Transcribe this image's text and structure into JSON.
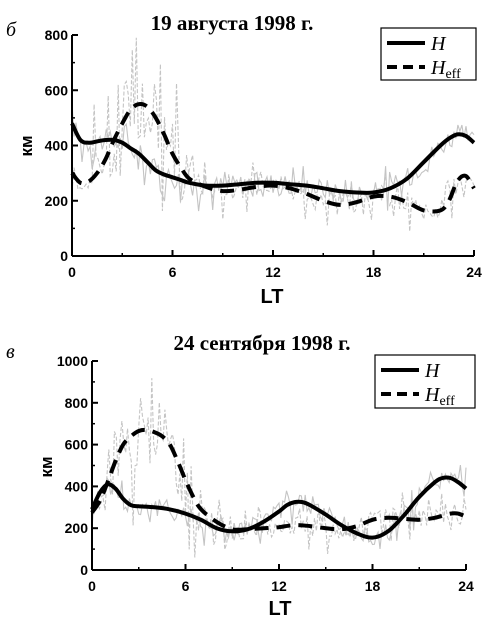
{
  "chart_data": [
    {
      "type": "line",
      "panel_label": "б",
      "title": "19 августа 1998 г.",
      "xlabel": "LT",
      "ylabel": "км",
      "xlim": [
        0,
        24
      ],
      "ylim": [
        0,
        800
      ],
      "xticks": [
        "0",
        "6",
        "12",
        "18",
        "24"
      ],
      "yticks": [
        "0",
        "200",
        "400",
        "600",
        "800"
      ],
      "legend_position": "top-right",
      "series": [
        {
          "name": "H",
          "style": "solid",
          "x": [
            0,
            0.5,
            1,
            1.5,
            2,
            2.5,
            3,
            3.5,
            4,
            4.5,
            5,
            5.5,
            6,
            6.5,
            7,
            8,
            9,
            10,
            11,
            12,
            13,
            14,
            15,
            16,
            17,
            18,
            19,
            20,
            21,
            22,
            22.5,
            23,
            23.5,
            24
          ],
          "values": [
            480,
            420,
            410,
            415,
            420,
            420,
            410,
            390,
            370,
            340,
            310,
            295,
            285,
            275,
            265,
            255,
            255,
            260,
            265,
            265,
            260,
            255,
            245,
            235,
            230,
            230,
            245,
            280,
            340,
            400,
            425,
            440,
            435,
            410
          ]
        },
        {
          "name": "Heff",
          "name_main": "H",
          "name_sub": "eff",
          "style": "dashed",
          "x": [
            0,
            0.5,
            1,
            1.5,
            2,
            2.5,
            3,
            3.5,
            4,
            4.5,
            5,
            5.5,
            6,
            6.5,
            7,
            8,
            9,
            10,
            11,
            12,
            13,
            14,
            15,
            16,
            17,
            18,
            19,
            20,
            21,
            22,
            22.5,
            23,
            23.5,
            24
          ],
          "values": [
            300,
            265,
            270,
            300,
            350,
            420,
            480,
            530,
            550,
            540,
            500,
            440,
            370,
            320,
            280,
            250,
            235,
            240,
            250,
            255,
            245,
            225,
            200,
            185,
            195,
            215,
            215,
            195,
            165,
            165,
            200,
            270,
            290,
            245
          ]
        }
      ]
    },
    {
      "type": "line",
      "panel_label": "в",
      "title": "24 сентября 1998 г.",
      "xlabel": "LT",
      "ylabel": "км",
      "xlim": [
        0,
        24
      ],
      "ylim": [
        0,
        1000
      ],
      "xticks": [
        "0",
        "6",
        "12",
        "18",
        "24"
      ],
      "yticks": [
        "0",
        "200",
        "400",
        "600",
        "800",
        "1000"
      ],
      "legend_position": "top-right",
      "series": [
        {
          "name": "H",
          "style": "solid",
          "x": [
            0,
            0.5,
            1,
            1.5,
            2,
            2.5,
            3,
            4,
            5,
            6,
            7,
            8,
            9,
            10,
            11,
            12,
            12.5,
            13,
            13.5,
            14,
            15,
            16,
            17,
            18,
            19,
            20,
            21,
            22,
            22.5,
            23,
            23.5,
            24
          ],
          "values": [
            290,
            370,
            410,
            390,
            340,
            310,
            305,
            300,
            290,
            270,
            240,
            200,
            185,
            195,
            230,
            280,
            310,
            325,
            325,
            310,
            265,
            215,
            175,
            155,
            185,
            260,
            350,
            420,
            440,
            440,
            420,
            390
          ]
        },
        {
          "name": "Heff",
          "name_main": "H",
          "name_sub": "eff",
          "style": "dashed",
          "x": [
            0,
            0.5,
            1,
            1.5,
            2,
            2.5,
            3,
            3.5,
            4,
            4.5,
            5,
            5.5,
            6,
            6.5,
            7,
            8,
            9,
            10,
            11,
            12,
            13,
            14,
            15,
            16,
            17,
            18,
            19,
            20,
            21,
            22,
            23,
            23.5,
            24
          ],
          "values": [
            275,
            330,
            420,
            520,
            600,
            640,
            665,
            670,
            660,
            640,
            600,
            520,
            430,
            350,
            290,
            230,
            195,
            195,
            200,
            205,
            215,
            210,
            200,
            195,
            210,
            240,
            250,
            245,
            240,
            250,
            270,
            270,
            255
          ]
        }
      ]
    }
  ]
}
